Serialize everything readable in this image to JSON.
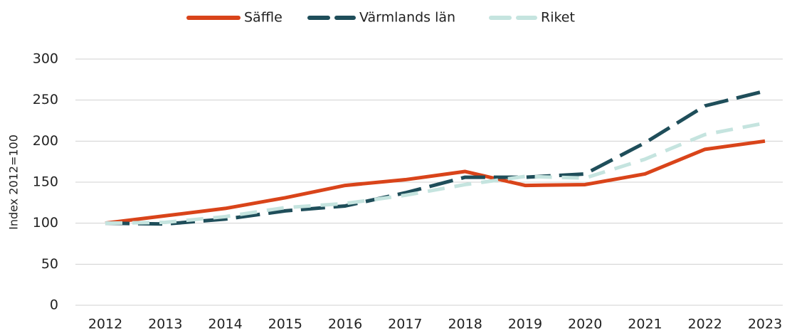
{
  "chart_data": {
    "type": "line",
    "ylabel": "Index 2012=100",
    "categories": [
      "2012",
      "2013",
      "2014",
      "2015",
      "2016",
      "2017",
      "2018",
      "2019",
      "2020",
      "2021",
      "2022",
      "2023"
    ],
    "series": [
      {
        "name": "Säffle",
        "color": "#d9441a",
        "dash": "solid",
        "values": [
          100,
          109,
          118,
          131,
          146,
          153,
          163,
          146,
          147,
          160,
          190,
          200
        ]
      },
      {
        "name": "Värmlands län",
        "color": "#1f4e5a",
        "dash": "dashed",
        "values": [
          100,
          99,
          105,
          115,
          121,
          137,
          156,
          156,
          160,
          198,
          243,
          261
        ]
      },
      {
        "name": "Riket",
        "color": "#c5e4df",
        "dash": "dashed",
        "values": [
          100,
          101,
          108,
          119,
          124,
          134,
          147,
          157,
          155,
          178,
          208,
          222
        ]
      }
    ],
    "ylim": [
      0,
      300
    ],
    "yticks": [
      0,
      50,
      100,
      150,
      200,
      250,
      300
    ],
    "grid": true,
    "legend": "top"
  }
}
